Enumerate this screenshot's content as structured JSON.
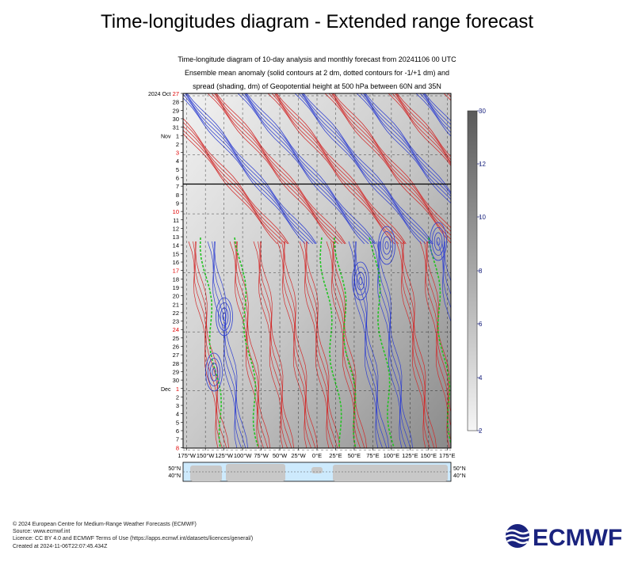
{
  "header": {
    "title": "Time-longitudes diagram - Extended range forecast",
    "subtitle_lines": [
      "Time-longitude diagram of 10-day analysis and monthly forecast from 20241106 00 UTC",
      "Ensemble mean anomaly (solid contours at 2 dm, dotted contours for -1/+1 dm) and",
      "spread (shading, dm) of Geopotential height at 500 hPa between 60N and 35N"
    ]
  },
  "chart_data": {
    "type": "heatmap",
    "x_ticks": [
      "175°W",
      "150°W",
      "125°W",
      "100°W",
      "75°W",
      "50°W",
      "25°W",
      "0°E",
      "25°E",
      "50°E",
      "75°E",
      "100°E",
      "125°E",
      "150°E",
      "175°E"
    ],
    "x_range": [
      -180,
      180
    ],
    "y_labels": [
      {
        "text": "2024 Oct",
        "day": "27",
        "red": true
      },
      {
        "text": "",
        "day": "28",
        "red": false
      },
      {
        "text": "",
        "day": "29",
        "red": false
      },
      {
        "text": "",
        "day": "30",
        "red": false
      },
      {
        "text": "",
        "day": "31",
        "red": false
      },
      {
        "text": "Nov",
        "day": "1",
        "red": false
      },
      {
        "text": "",
        "day": "2",
        "red": false
      },
      {
        "text": "",
        "day": "3",
        "red": true
      },
      {
        "text": "",
        "day": "4",
        "red": false
      },
      {
        "text": "",
        "day": "5",
        "red": false
      },
      {
        "text": "",
        "day": "6",
        "red": false
      },
      {
        "text": "",
        "day": "7",
        "red": false
      },
      {
        "text": "",
        "day": "8",
        "red": false
      },
      {
        "text": "",
        "day": "9",
        "red": false
      },
      {
        "text": "",
        "day": "10",
        "red": true
      },
      {
        "text": "",
        "day": "11",
        "red": false
      },
      {
        "text": "",
        "day": "12",
        "red": false
      },
      {
        "text": "",
        "day": "13",
        "red": false
      },
      {
        "text": "",
        "day": "14",
        "red": false
      },
      {
        "text": "",
        "day": "15",
        "red": false
      },
      {
        "text": "",
        "day": "16",
        "red": false
      },
      {
        "text": "",
        "day": "17",
        "red": true
      },
      {
        "text": "",
        "day": "18",
        "red": false
      },
      {
        "text": "",
        "day": "19",
        "red": false
      },
      {
        "text": "",
        "day": "20",
        "red": false
      },
      {
        "text": "",
        "day": "21",
        "red": false
      },
      {
        "text": "",
        "day": "22",
        "red": false
      },
      {
        "text": "",
        "day": "23",
        "red": false
      },
      {
        "text": "",
        "day": "24",
        "red": true
      },
      {
        "text": "",
        "day": "25",
        "red": false
      },
      {
        "text": "",
        "day": "26",
        "red": false
      },
      {
        "text": "",
        "day": "27",
        "red": false
      },
      {
        "text": "",
        "day": "28",
        "red": false
      },
      {
        "text": "",
        "day": "29",
        "red": false
      },
      {
        "text": "",
        "day": "30",
        "red": false
      },
      {
        "text": "Dec",
        "day": "1",
        "red": true
      },
      {
        "text": "",
        "day": "2",
        "red": false
      },
      {
        "text": "",
        "day": "3",
        "red": false
      },
      {
        "text": "",
        "day": "4",
        "red": false
      },
      {
        "text": "",
        "day": "5",
        "red": false
      },
      {
        "text": "",
        "day": "6",
        "red": false
      },
      {
        "text": "",
        "day": "7",
        "red": false
      },
      {
        "text": "",
        "day": "8",
        "red": true
      }
    ],
    "forecast_start_day_index": 10,
    "colorbar": {
      "min": 2,
      "max": 30,
      "ticks": [
        "2",
        "4",
        "6",
        "8",
        "10",
        "12",
        "30"
      ]
    },
    "map_lat_labels": [
      "50°N",
      "40°N"
    ],
    "colors": {
      "positive": "#d22b2b",
      "negative": "#3040d0",
      "zero": "#22c322",
      "accent": "#1a237e",
      "day_red": "#e00000"
    }
  },
  "footer": {
    "lines": [
      "© 2024 European Centre for Medium-Range Weather Forecasts (ECMWF)",
      "Source: www.ecmwf.int",
      "Licence: CC BY 4.0 and ECMWF Terms of Use (https://apps.ecmwf.int/datasets/licences/general/)",
      "Created at 2024-11-06T22:07:45.434Z"
    ]
  },
  "logo": {
    "text": "ECMWF",
    "color": "#1a237e"
  }
}
